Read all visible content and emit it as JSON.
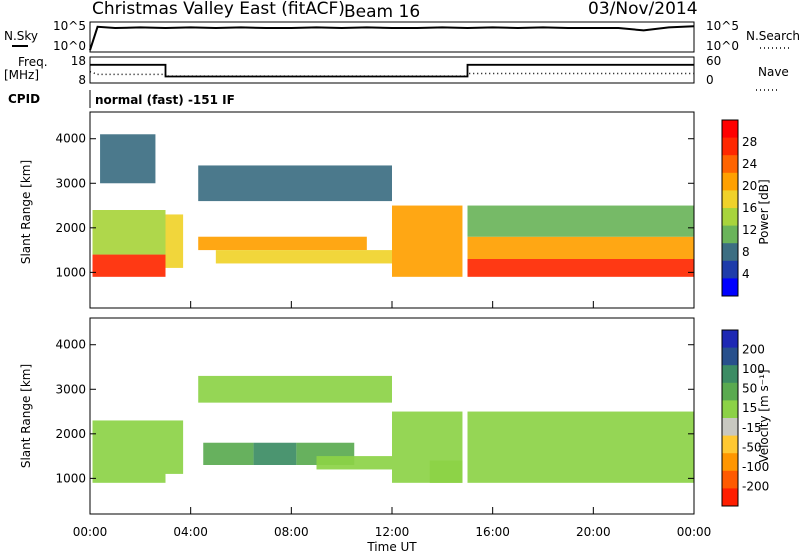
{
  "header": {
    "station": "Christmas Valley East (fitACF)",
    "beam": "Beam 16",
    "date": "03/Nov/2014"
  },
  "top_panels": {
    "nsky_label": "N.Sky",
    "nsearch_label": "N.Search",
    "noise_ticks": [
      "10^5",
      "10^0"
    ],
    "noise_ticks_right": [
      "10^5",
      "10^0"
    ],
    "freq_label": "Freq.",
    "freq_unit": "[MHz]",
    "freq_ticks": [
      "18",
      "8"
    ],
    "nave_label": "Nave",
    "nave_ticks": [
      "60",
      "0"
    ],
    "cpid_label": "CPID",
    "cpid_text": "normal (fast) -151 IF"
  },
  "axes": {
    "xlabel": "Time UT",
    "ylabel": "Slant Range [km]",
    "xticks": [
      "00:00",
      "04:00",
      "08:00",
      "12:00",
      "16:00",
      "20:00",
      "00:00"
    ],
    "yticks": [
      "1000",
      "2000",
      "3000",
      "4000"
    ]
  },
  "colorbars": {
    "power": {
      "label": "Power [dB]",
      "ticks": [
        "4",
        "8",
        "12",
        "16",
        "20",
        "24",
        "28"
      ],
      "colors": [
        "#0000ff",
        "#1e3caa",
        "#3c6e82",
        "#6ab45a",
        "#a8d43c",
        "#f0d22a",
        "#ffa000",
        "#ff6400",
        "#ff2800",
        "#ff0000"
      ]
    },
    "velocity": {
      "label": "Velocity [m s⁻¹]",
      "ticks": [
        "200",
        "100",
        "50",
        "15",
        "-15",
        "-50",
        "-100",
        "-200"
      ],
      "colors": [
        "#1e28b4",
        "#28508c",
        "#3c8c64",
        "#5aaa50",
        "#8cd246",
        "#c8c8c0",
        "#ffc832",
        "#ff9600",
        "#ff5a00",
        "#ff1e00"
      ]
    }
  },
  "chart_data": [
    {
      "type": "line",
      "title": "N.Sky / N.Search",
      "series": [
        {
          "name": "N.Sky",
          "x": [
            0,
            0.3,
            1,
            2,
            3,
            4,
            5,
            6,
            7,
            8,
            9,
            10,
            11,
            12,
            13,
            14,
            15,
            16,
            17,
            18,
            19,
            20,
            21,
            22,
            23,
            24
          ],
          "values": [
            0.3,
            4.2,
            4.0,
            4.1,
            4.0,
            4.1,
            4.0,
            4.1,
            4.0,
            4.0,
            4.1,
            4.0,
            4.1,
            4.0,
            4.0,
            4.1,
            4.0,
            4.1,
            4.0,
            4.1,
            4.0,
            4.0,
            4.0,
            3.6,
            4.1,
            4.3
          ]
        }
      ]
    },
    {
      "type": "line",
      "title": "Freq / Nave",
      "series": [
        {
          "name": "Freq.",
          "x": [
            0,
            3,
            3,
            15,
            15,
            24
          ],
          "values": [
            15,
            15,
            10.5,
            10.5,
            15,
            15
          ]
        },
        {
          "name": "Nave",
          "x": [
            0,
            0.3,
            3,
            3,
            15,
            15,
            24
          ],
          "values": [
            26,
            20,
            20,
            16,
            16,
            22,
            22
          ]
        }
      ]
    },
    {
      "type": "heatmap",
      "title": "Power [dB]",
      "x_unit": "hours UT",
      "y_unit": "km",
      "ylim": [
        200,
        4600
      ],
      "xlim": [
        0,
        24
      ],
      "regions": [
        {
          "x0": 0.1,
          "x1": 3.0,
          "y0": 900,
          "y1": 1400,
          "value": 28
        },
        {
          "x0": 0.1,
          "x1": 3.0,
          "y0": 1400,
          "y1": 2400,
          "value": 14
        },
        {
          "x0": 0.4,
          "x1": 2.6,
          "y0": 3000,
          "y1": 4100,
          "value": 9
        },
        {
          "x0": 3.0,
          "x1": 3.7,
          "y0": 1100,
          "y1": 2300,
          "value": 18
        },
        {
          "x0": 4.3,
          "x1": 11.0,
          "y0": 1500,
          "y1": 1800,
          "value": 20
        },
        {
          "x0": 5.0,
          "x1": 12.0,
          "y0": 1200,
          "y1": 1500,
          "value": 16
        },
        {
          "x0": 4.3,
          "x1": 12.0,
          "y0": 2600,
          "y1": 3400,
          "value": 7
        },
        {
          "x0": 12.0,
          "x1": 14.8,
          "y0": 900,
          "y1": 2500,
          "value": 22
        },
        {
          "x0": 15.0,
          "x1": 24.0,
          "y0": 900,
          "y1": 1300,
          "value": 28
        },
        {
          "x0": 15.0,
          "x1": 24.0,
          "y0": 1300,
          "y1": 1800,
          "value": 20
        },
        {
          "x0": 15.0,
          "x1": 24.0,
          "y0": 1800,
          "y1": 2500,
          "value": 10
        }
      ]
    },
    {
      "type": "heatmap",
      "title": "Velocity [m s-1]",
      "x_unit": "hours UT",
      "y_unit": "km",
      "ylim": [
        200,
        4600
      ],
      "xlim": [
        0,
        24
      ],
      "regions": [
        {
          "x0": 0.1,
          "x1": 3.0,
          "y0": 900,
          "y1": 2300,
          "value": 0
        },
        {
          "x0": 3.0,
          "x1": 3.7,
          "y0": 1100,
          "y1": 2300,
          "value": 0
        },
        {
          "x0": 4.5,
          "x1": 6.5,
          "y0": 1300,
          "y1": 1800,
          "value": 50
        },
        {
          "x0": 6.5,
          "x1": 8.2,
          "y0": 1300,
          "y1": 1800,
          "value": 100
        },
        {
          "x0": 8.2,
          "x1": 10.5,
          "y0": 1300,
          "y1": 1800,
          "value": 50
        },
        {
          "x0": 9.0,
          "x1": 12.0,
          "y0": 1200,
          "y1": 1500,
          "value": 0
        },
        {
          "x0": 4.3,
          "x1": 12.0,
          "y0": 2700,
          "y1": 3300,
          "value": 0
        },
        {
          "x0": 12.0,
          "x1": 14.8,
          "y0": 900,
          "y1": 2500,
          "value": 0
        },
        {
          "x0": 13.5,
          "x1": 14.8,
          "y0": 900,
          "y1": 1400,
          "value": 40
        },
        {
          "x0": 15.0,
          "x1": 24.0,
          "y0": 900,
          "y1": 2500,
          "value": 0
        }
      ]
    }
  ]
}
